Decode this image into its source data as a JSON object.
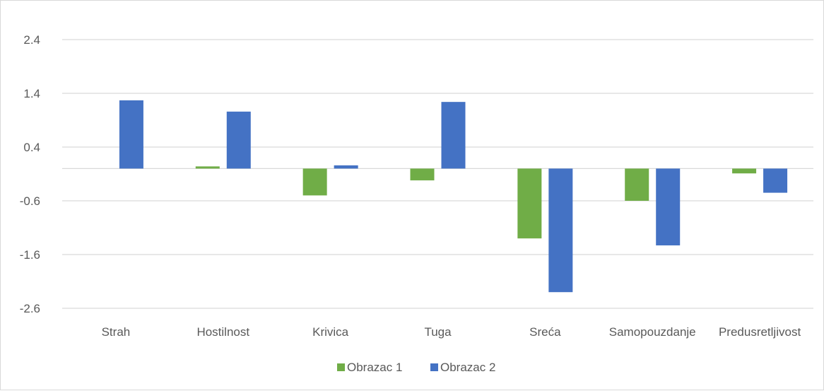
{
  "chart_data": {
    "type": "bar",
    "categories": [
      "Strah",
      "Hostilnost",
      "Krivica",
      "Tuga",
      "Sreća",
      "Samopouzdanje",
      "Predusretljivost"
    ],
    "series": [
      {
        "name": "Obrazac 1",
        "color": "#70ad47",
        "values": [
          0.0,
          0.04,
          -0.5,
          -0.22,
          -1.3,
          -0.6,
          -0.09
        ]
      },
      {
        "name": "Obrazac 2",
        "color": "#4472c4",
        "values": [
          1.27,
          1.06,
          0.06,
          1.24,
          -2.3,
          -1.43,
          -0.45
        ]
      }
    ],
    "yticks": [
      "2.4",
      "1.4",
      "0.4",
      "-0.6",
      "-1.6",
      "-2.6"
    ],
    "ylim": [
      -2.6,
      2.4
    ],
    "grid": true,
    "legend": "bottom",
    "title": "",
    "xlabel": "",
    "ylabel": ""
  }
}
